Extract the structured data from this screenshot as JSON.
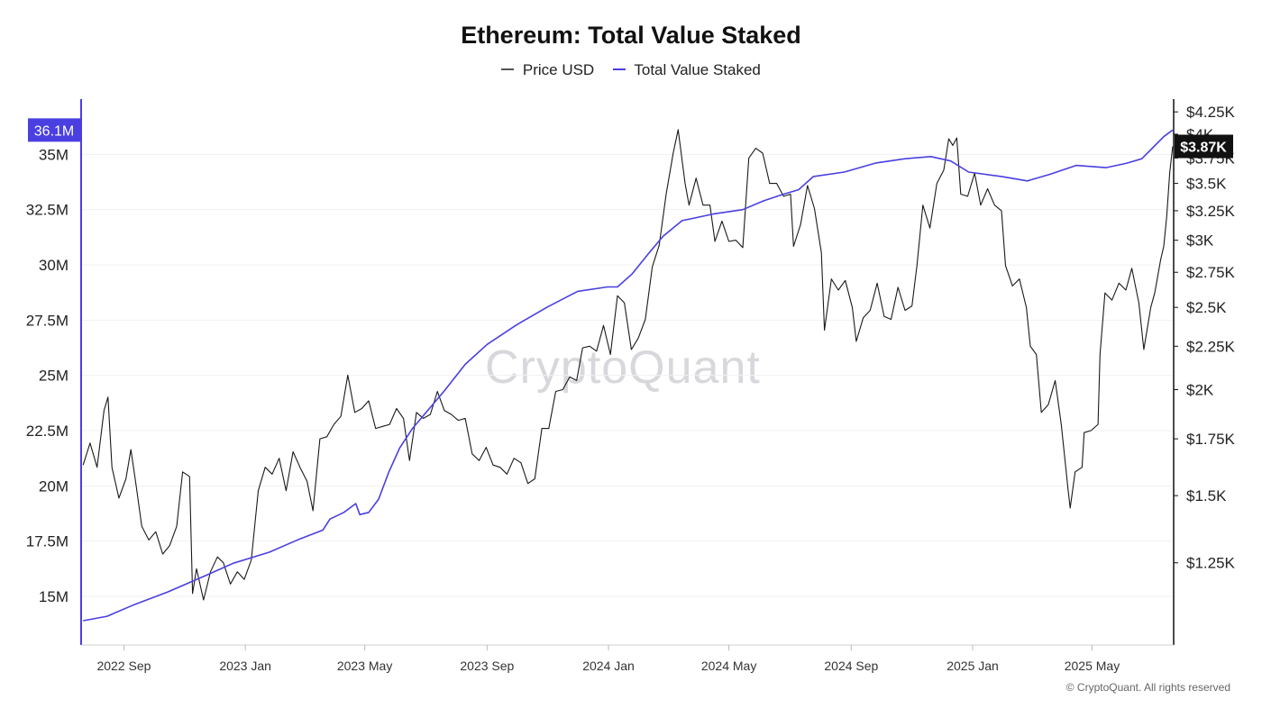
{
  "title": "Ethereum: Total Value Staked",
  "legend": [
    {
      "label": "Price USD",
      "color": "#555555"
    },
    {
      "label": "Total Value Staked",
      "color": "#4a3fe0"
    }
  ],
  "watermark": "CryptoQuant",
  "copyright": "© CryptoQuant. All rights reserved",
  "chart_data": {
    "type": "line",
    "title": "Ethereum: Total Value Staked",
    "grid": "horizontal",
    "legend_position": "top-center",
    "x_range": [
      "2022-07-20",
      "2025-07-22"
    ],
    "x_ticks": [
      {
        "date": "2022-09-01",
        "label": "2022 Sep"
      },
      {
        "date": "2023-01-01",
        "label": "2023 Jan"
      },
      {
        "date": "2023-05-01",
        "label": "2023 May"
      },
      {
        "date": "2023-09-01",
        "label": "2023 Sep"
      },
      {
        "date": "2024-01-01",
        "label": "2024 Jan"
      },
      {
        "date": "2024-05-01",
        "label": "2024 May"
      },
      {
        "date": "2024-09-01",
        "label": "2024 Sep"
      },
      {
        "date": "2025-01-01",
        "label": "2025 Jan"
      },
      {
        "date": "2025-05-01",
        "label": "2025 May"
      }
    ],
    "y_left": {
      "range": [
        12.8,
        37.5
      ],
      "ticks": [
        {
          "value": 15,
          "label": "15M"
        },
        {
          "value": 17.5,
          "label": "17.5M"
        },
        {
          "value": 20,
          "label": "20M"
        },
        {
          "value": 22.5,
          "label": "22.5M"
        },
        {
          "value": 25,
          "label": "25M"
        },
        {
          "value": 27.5,
          "label": "27.5M"
        },
        {
          "value": 30,
          "label": "30M"
        },
        {
          "value": 32.5,
          "label": "32.5M"
        },
        {
          "value": 35,
          "label": "35M"
        }
      ],
      "current_label": "36.1M",
      "current_value": 36.1
    },
    "y_right": {
      "scale": "log",
      "range": [
        1000,
        4400
      ],
      "ticks": [
        {
          "value": 1250,
          "label": "$1.25K"
        },
        {
          "value": 1500,
          "label": "$1.5K"
        },
        {
          "value": 1750,
          "label": "$1.75K"
        },
        {
          "value": 2000,
          "label": "$2K"
        },
        {
          "value": 2250,
          "label": "$2.25K"
        },
        {
          "value": 2500,
          "label": "$2.5K"
        },
        {
          "value": 2750,
          "label": "$2.75K"
        },
        {
          "value": 3000,
          "label": "$3K"
        },
        {
          "value": 3250,
          "label": "$3.25K"
        },
        {
          "value": 3500,
          "label": "$3.5K"
        },
        {
          "value": 3750,
          "label": "$3.75K"
        },
        {
          "value": 4000,
          "label": "$4K"
        },
        {
          "value": 4250,
          "label": "$4.25K"
        }
      ],
      "current_label": "$3.87K",
      "current_value": 3870
    },
    "series": [
      {
        "name": "Price USD",
        "axis": "right",
        "color": "#1a1a1a",
        "points": [
          [
            "2022-07-22",
            1630
          ],
          [
            "2022-07-29",
            1730
          ],
          [
            "2022-08-05",
            1620
          ],
          [
            "2022-08-12",
            1890
          ],
          [
            "2022-08-16",
            1960
          ],
          [
            "2022-08-20",
            1620
          ],
          [
            "2022-08-27",
            1490
          ],
          [
            "2022-09-03",
            1570
          ],
          [
            "2022-09-08",
            1700
          ],
          [
            "2022-09-13",
            1550
          ],
          [
            "2022-09-19",
            1380
          ],
          [
            "2022-09-26",
            1330
          ],
          [
            "2022-10-03",
            1360
          ],
          [
            "2022-10-10",
            1280
          ],
          [
            "2022-10-17",
            1310
          ],
          [
            "2022-10-24",
            1380
          ],
          [
            "2022-10-30",
            1600
          ],
          [
            "2022-11-06",
            1580
          ],
          [
            "2022-11-09",
            1150
          ],
          [
            "2022-11-13",
            1230
          ],
          [
            "2022-11-20",
            1130
          ],
          [
            "2022-11-27",
            1220
          ],
          [
            "2022-12-04",
            1270
          ],
          [
            "2022-12-10",
            1250
          ],
          [
            "2022-12-17",
            1180
          ],
          [
            "2022-12-24",
            1220
          ],
          [
            "2022-12-31",
            1195
          ],
          [
            "2023-01-07",
            1260
          ],
          [
            "2023-01-14",
            1520
          ],
          [
            "2023-01-21",
            1620
          ],
          [
            "2023-01-28",
            1590
          ],
          [
            "2023-02-04",
            1660
          ],
          [
            "2023-02-11",
            1520
          ],
          [
            "2023-02-18",
            1690
          ],
          [
            "2023-02-25",
            1620
          ],
          [
            "2023-03-04",
            1560
          ],
          [
            "2023-03-10",
            1440
          ],
          [
            "2023-03-17",
            1750
          ],
          [
            "2023-03-24",
            1760
          ],
          [
            "2023-03-31",
            1820
          ],
          [
            "2023-04-07",
            1860
          ],
          [
            "2023-04-14",
            2080
          ],
          [
            "2023-04-21",
            1880
          ],
          [
            "2023-04-28",
            1900
          ],
          [
            "2023-05-05",
            1940
          ],
          [
            "2023-05-12",
            1800
          ],
          [
            "2023-05-19",
            1810
          ],
          [
            "2023-05-26",
            1820
          ],
          [
            "2023-06-02",
            1900
          ],
          [
            "2023-06-09",
            1850
          ],
          [
            "2023-06-15",
            1650
          ],
          [
            "2023-06-22",
            1880
          ],
          [
            "2023-06-29",
            1850
          ],
          [
            "2023-07-06",
            1870
          ],
          [
            "2023-07-13",
            1990
          ],
          [
            "2023-07-20",
            1890
          ],
          [
            "2023-07-27",
            1870
          ],
          [
            "2023-08-03",
            1840
          ],
          [
            "2023-08-10",
            1850
          ],
          [
            "2023-08-17",
            1680
          ],
          [
            "2023-08-24",
            1650
          ],
          [
            "2023-08-31",
            1710
          ],
          [
            "2023-09-07",
            1630
          ],
          [
            "2023-09-14",
            1620
          ],
          [
            "2023-09-21",
            1590
          ],
          [
            "2023-09-28",
            1660
          ],
          [
            "2023-10-05",
            1640
          ],
          [
            "2023-10-12",
            1550
          ],
          [
            "2023-10-19",
            1570
          ],
          [
            "2023-10-26",
            1800
          ],
          [
            "2023-11-02",
            1800
          ],
          [
            "2023-11-09",
            1990
          ],
          [
            "2023-11-16",
            2000
          ],
          [
            "2023-11-23",
            2070
          ],
          [
            "2023-11-30",
            2050
          ],
          [
            "2023-12-06",
            2240
          ],
          [
            "2023-12-13",
            2250
          ],
          [
            "2023-12-20",
            2220
          ],
          [
            "2023-12-27",
            2380
          ],
          [
            "2024-01-03",
            2200
          ],
          [
            "2024-01-10",
            2580
          ],
          [
            "2024-01-17",
            2530
          ],
          [
            "2024-01-24",
            2230
          ],
          [
            "2024-01-31",
            2300
          ],
          [
            "2024-02-07",
            2420
          ],
          [
            "2024-02-14",
            2790
          ],
          [
            "2024-02-21",
            2960
          ],
          [
            "2024-02-28",
            3400
          ],
          [
            "2024-03-06",
            3800
          ],
          [
            "2024-03-11",
            4050
          ],
          [
            "2024-03-18",
            3500
          ],
          [
            "2024-03-22",
            3300
          ],
          [
            "2024-03-29",
            3550
          ],
          [
            "2024-04-05",
            3300
          ],
          [
            "2024-04-12",
            3300
          ],
          [
            "2024-04-17",
            2990
          ],
          [
            "2024-04-24",
            3160
          ],
          [
            "2024-05-01",
            2990
          ],
          [
            "2024-05-08",
            3000
          ],
          [
            "2024-05-15",
            2940
          ],
          [
            "2024-05-21",
            3750
          ],
          [
            "2024-05-28",
            3850
          ],
          [
            "2024-06-04",
            3800
          ],
          [
            "2024-06-11",
            3500
          ],
          [
            "2024-06-18",
            3500
          ],
          [
            "2024-06-25",
            3380
          ],
          [
            "2024-07-02",
            3400
          ],
          [
            "2024-07-05",
            2950
          ],
          [
            "2024-07-12",
            3130
          ],
          [
            "2024-07-19",
            3480
          ],
          [
            "2024-07-26",
            3270
          ],
          [
            "2024-08-02",
            2900
          ],
          [
            "2024-08-05",
            2350
          ],
          [
            "2024-08-12",
            2700
          ],
          [
            "2024-08-19",
            2620
          ],
          [
            "2024-08-26",
            2690
          ],
          [
            "2024-09-02",
            2500
          ],
          [
            "2024-09-06",
            2280
          ],
          [
            "2024-09-13",
            2430
          ],
          [
            "2024-09-20",
            2480
          ],
          [
            "2024-09-27",
            2670
          ],
          [
            "2024-10-04",
            2440
          ],
          [
            "2024-10-11",
            2420
          ],
          [
            "2024-10-18",
            2640
          ],
          [
            "2024-10-25",
            2480
          ],
          [
            "2024-11-01",
            2510
          ],
          [
            "2024-11-06",
            2800
          ],
          [
            "2024-11-12",
            3300
          ],
          [
            "2024-11-19",
            3100
          ],
          [
            "2024-11-26",
            3500
          ],
          [
            "2024-12-03",
            3630
          ],
          [
            "2024-12-08",
            3950
          ],
          [
            "2024-12-12",
            3880
          ],
          [
            "2024-12-16",
            3960
          ],
          [
            "2024-12-20",
            3400
          ],
          [
            "2024-12-27",
            3380
          ],
          [
            "2025-01-03",
            3600
          ],
          [
            "2025-01-09",
            3300
          ],
          [
            "2025-01-16",
            3450
          ],
          [
            "2025-01-23",
            3300
          ],
          [
            "2025-01-30",
            3250
          ],
          [
            "2025-02-03",
            2800
          ],
          [
            "2025-02-10",
            2650
          ],
          [
            "2025-02-17",
            2700
          ],
          [
            "2025-02-24",
            2500
          ],
          [
            "2025-02-28",
            2250
          ],
          [
            "2025-03-06",
            2200
          ],
          [
            "2025-03-11",
            1880
          ],
          [
            "2025-03-18",
            1920
          ],
          [
            "2025-03-25",
            2050
          ],
          [
            "2025-03-31",
            1820
          ],
          [
            "2025-04-07",
            1520
          ],
          [
            "2025-04-09",
            1450
          ],
          [
            "2025-04-14",
            1600
          ],
          [
            "2025-04-21",
            1620
          ],
          [
            "2025-04-23",
            1780
          ],
          [
            "2025-04-30",
            1790
          ],
          [
            "2025-05-07",
            1820
          ],
          [
            "2025-05-09",
            2200
          ],
          [
            "2025-05-14",
            2600
          ],
          [
            "2025-05-21",
            2550
          ],
          [
            "2025-05-28",
            2670
          ],
          [
            "2025-06-04",
            2620
          ],
          [
            "2025-06-10",
            2780
          ],
          [
            "2025-06-17",
            2530
          ],
          [
            "2025-06-22",
            2230
          ],
          [
            "2025-06-29",
            2500
          ],
          [
            "2025-07-03",
            2600
          ],
          [
            "2025-07-09",
            2850
          ],
          [
            "2025-07-12",
            2950
          ],
          [
            "2025-07-15",
            3200
          ],
          [
            "2025-07-18",
            3600
          ],
          [
            "2025-07-21",
            3870
          ]
        ]
      },
      {
        "name": "Total Value Staked",
        "axis": "left",
        "color": "#4a3fe0",
        "points": [
          [
            "2022-07-22",
            13.9
          ],
          [
            "2022-08-15",
            14.1
          ],
          [
            "2022-09-10",
            14.6
          ],
          [
            "2022-10-15",
            15.2
          ],
          [
            "2022-11-20",
            15.9
          ],
          [
            "2022-12-20",
            16.5
          ],
          [
            "2023-01-25",
            17.0
          ],
          [
            "2023-02-25",
            17.6
          ],
          [
            "2023-03-20",
            18.0
          ],
          [
            "2023-03-27",
            18.5
          ],
          [
            "2023-04-10",
            18.8
          ],
          [
            "2023-04-22",
            19.2
          ],
          [
            "2023-04-26",
            18.7
          ],
          [
            "2023-05-05",
            18.8
          ],
          [
            "2023-05-15",
            19.4
          ],
          [
            "2023-05-25",
            20.6
          ],
          [
            "2023-06-05",
            21.7
          ],
          [
            "2023-06-18",
            22.6
          ],
          [
            "2023-07-05",
            23.5
          ],
          [
            "2023-07-20",
            24.3
          ],
          [
            "2023-08-10",
            25.5
          ],
          [
            "2023-09-01",
            26.4
          ],
          [
            "2023-10-01",
            27.3
          ],
          [
            "2023-11-01",
            28.1
          ],
          [
            "2023-12-01",
            28.8
          ],
          [
            "2023-12-31",
            29.0
          ],
          [
            "2024-01-10",
            29.0
          ],
          [
            "2024-01-25",
            29.6
          ],
          [
            "2024-02-10",
            30.5
          ],
          [
            "2024-02-25",
            31.3
          ],
          [
            "2024-03-15",
            32.0
          ],
          [
            "2024-04-15",
            32.3
          ],
          [
            "2024-05-15",
            32.5
          ],
          [
            "2024-06-05",
            32.9
          ],
          [
            "2024-06-25",
            33.2
          ],
          [
            "2024-07-10",
            33.4
          ],
          [
            "2024-07-25",
            34.0
          ],
          [
            "2024-08-25",
            34.2
          ],
          [
            "2024-09-25",
            34.6
          ],
          [
            "2024-10-25",
            34.8
          ],
          [
            "2024-11-20",
            34.9
          ],
          [
            "2024-12-10",
            34.7
          ],
          [
            "2024-12-28",
            34.2
          ],
          [
            "2025-01-30",
            34.0
          ],
          [
            "2025-02-25",
            33.8
          ],
          [
            "2025-03-20",
            34.1
          ],
          [
            "2025-04-15",
            34.5
          ],
          [
            "2025-05-15",
            34.4
          ],
          [
            "2025-06-05",
            34.6
          ],
          [
            "2025-06-20",
            34.8
          ],
          [
            "2025-07-01",
            35.3
          ],
          [
            "2025-07-12",
            35.8
          ],
          [
            "2025-07-21",
            36.1
          ]
        ]
      }
    ]
  }
}
